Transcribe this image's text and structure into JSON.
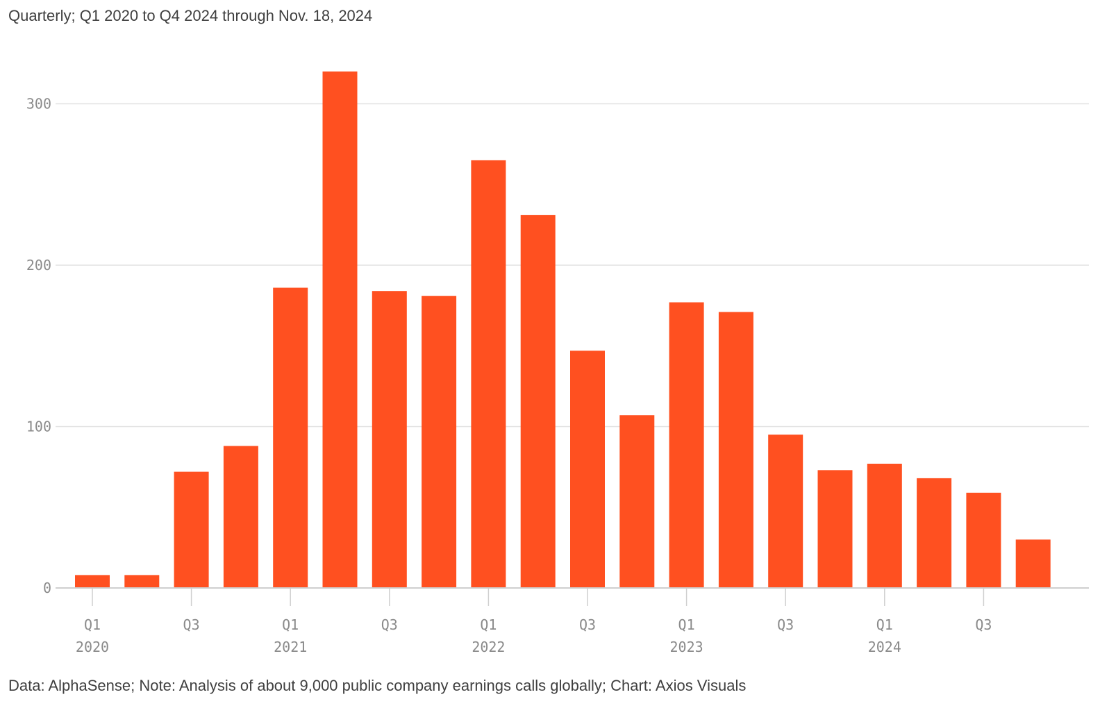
{
  "subtitle": "Quarterly; Q1 2020 to Q4 2024 through Nov. 18, 2024",
  "footer": "Data: AlphaSense; Note: Analysis of about 9,000 public company earnings calls globally; Chart: Axios Visuals",
  "colors": {
    "bar": "#ff5020",
    "grid": "#e2e2e2",
    "axis": "#cfcfcf",
    "tick_text": "#8a8a8a",
    "text": "#3f3f3f"
  },
  "chart_data": {
    "type": "bar",
    "categories": [
      "Q1 2020",
      "Q2 2020",
      "Q3 2020",
      "Q4 2020",
      "Q1 2021",
      "Q2 2021",
      "Q3 2021",
      "Q4 2021",
      "Q1 2022",
      "Q2 2022",
      "Q3 2022",
      "Q4 2022",
      "Q1 2023",
      "Q2 2023",
      "Q3 2023",
      "Q4 2023",
      "Q1 2024",
      "Q2 2024",
      "Q3 2024",
      "Q4 2024"
    ],
    "values": [
      8,
      8,
      72,
      88,
      186,
      320,
      184,
      181,
      265,
      231,
      147,
      107,
      177,
      171,
      95,
      73,
      77,
      68,
      59,
      30
    ],
    "ylim": [
      0,
      320
    ],
    "y_ticks": [
      0,
      100,
      200,
      300
    ],
    "x_tick_labels": [
      {
        "index": 0,
        "quarter": "Q1",
        "year": "2020"
      },
      {
        "index": 2,
        "quarter": "Q3",
        "year": ""
      },
      {
        "index": 4,
        "quarter": "Q1",
        "year": "2021"
      },
      {
        "index": 6,
        "quarter": "Q3",
        "year": ""
      },
      {
        "index": 8,
        "quarter": "Q1",
        "year": "2022"
      },
      {
        "index": 10,
        "quarter": "Q3",
        "year": ""
      },
      {
        "index": 12,
        "quarter": "Q1",
        "year": "2023"
      },
      {
        "index": 14,
        "quarter": "Q3",
        "year": ""
      },
      {
        "index": 16,
        "quarter": "Q1",
        "year": "2024"
      },
      {
        "index": 18,
        "quarter": "Q3",
        "year": ""
      }
    ],
    "grid": true,
    "legend": "none"
  }
}
